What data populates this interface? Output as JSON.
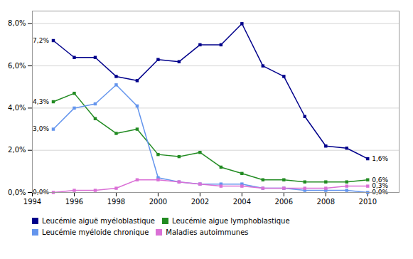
{
  "chart_data": {
    "type": "line",
    "x": [
      1995,
      1996,
      1997,
      1998,
      1999,
      2000,
      2001,
      2002,
      2003,
      2004,
      2005,
      2006,
      2007,
      2008,
      2009,
      2010
    ],
    "series": [
      {
        "name": "Leucémie aiguë myéloblastique",
        "color": "#00008B",
        "marker": "square",
        "values": [
          0.072,
          0.064,
          0.064,
          0.055,
          0.053,
          0.063,
          0.062,
          0.07,
          0.07,
          0.08,
          0.06,
          0.055,
          0.036,
          0.022,
          0.021,
          0.016
        ]
      },
      {
        "name": "Leucémie aigue lymphoblastique",
        "color": "#228B22",
        "marker": "square",
        "values": [
          0.043,
          0.047,
          0.035,
          0.028,
          0.03,
          0.018,
          0.017,
          0.019,
          0.012,
          0.009,
          0.006,
          0.006,
          0.005,
          0.005,
          0.005,
          0.006
        ]
      },
      {
        "name": "Leucémie myéloide chronique",
        "color": "#6495ED",
        "marker": "square",
        "values": [
          0.03,
          0.04,
          0.042,
          0.051,
          0.041,
          0.007,
          0.005,
          0.004,
          0.004,
          0.004,
          0.002,
          0.002,
          0.001,
          0.001,
          0.001,
          0.0
        ]
      },
      {
        "name": "Maladies autoimmunes",
        "color": "#DA70D6",
        "marker": "square",
        "values": [
          0.0,
          0.001,
          0.001,
          0.002,
          0.006,
          0.006,
          0.005,
          0.004,
          0.003,
          0.003,
          0.002,
          0.002,
          0.002,
          0.002,
          0.003,
          0.003
        ]
      }
    ],
    "xlim": [
      1994,
      2011.5
    ],
    "xticks": [
      1994,
      1996,
      1998,
      2000,
      2002,
      2004,
      2006,
      2008,
      2010
    ],
    "ylim": [
      0.0,
      0.086
    ],
    "yticks": [
      {
        "value": 0.0,
        "label": "0,0%"
      },
      {
        "value": 0.02,
        "label": "2,0%"
      },
      {
        "value": 0.04,
        "label": "4,0%"
      },
      {
        "value": 0.06,
        "label": "6,0%"
      },
      {
        "value": 0.08,
        "label": "8,0%"
      }
    ],
    "grid": true,
    "legend": "bottom",
    "annotations": [
      {
        "text": "7,2%",
        "x": 1995,
        "y": 0.072
      },
      {
        "text": "4,3%",
        "x": 1995,
        "y": 0.043
      },
      {
        "text": "3,0%",
        "x": 1995,
        "y": 0.03
      },
      {
        "text": "0,0%",
        "x": 1995,
        "y": 0.0
      },
      {
        "text": "1,6%",
        "x": 2010,
        "y": 0.016
      },
      {
        "text": "0,6%",
        "x": 2010,
        "y": 0.006
      },
      {
        "text": "0,3%",
        "x": 2010,
        "y": 0.003
      },
      {
        "text": "0,0%",
        "x": 2010,
        "y": 0.0
      }
    ]
  }
}
